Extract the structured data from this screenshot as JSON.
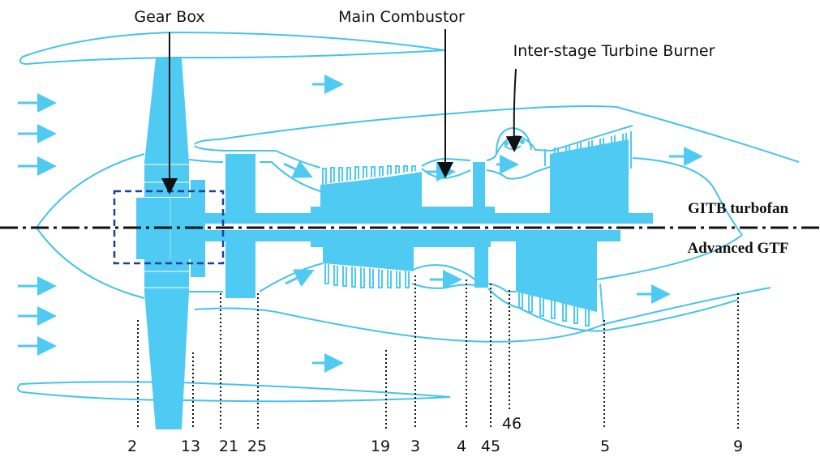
{
  "labels": {
    "gear_box": "Gear Box",
    "main_combustor": "Main Combustor",
    "itb": "Inter-stage Turbine Burner",
    "upper_half": "GITB turbofan",
    "lower_half": "Advanced GTF"
  },
  "stations": [
    "2",
    "13",
    "21",
    "25",
    "19",
    "3",
    "4",
    "45",
    "46",
    "5",
    "9"
  ],
  "colors": {
    "engine": "#4fcaf2",
    "gearbox_box": "#1f3f9a",
    "text": "#111111"
  }
}
